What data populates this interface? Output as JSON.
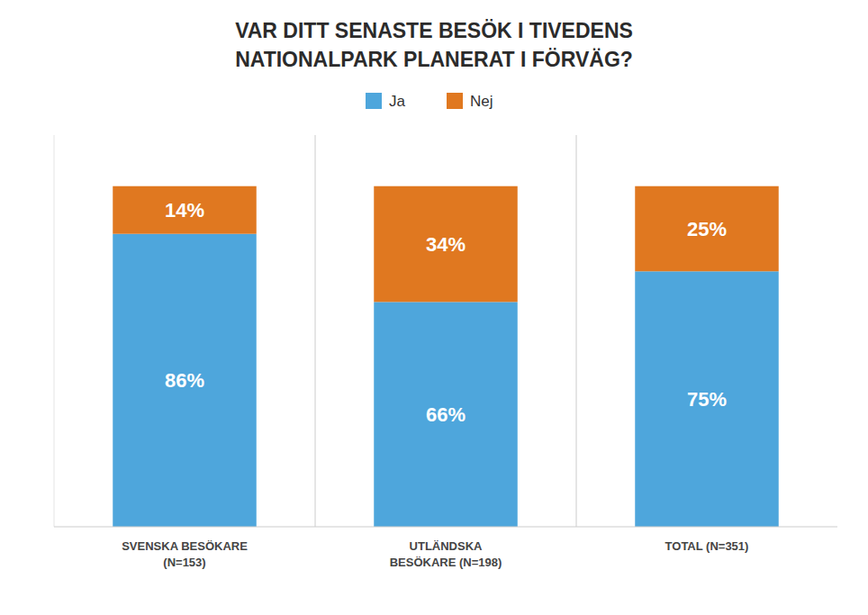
{
  "chart_data": {
    "type": "bar",
    "stacked": true,
    "title": "VAR DITT SENASTE BESÖK I TIVEDENS\nNATIONALPARK PLANERAT I FÖRVÄG?",
    "categories": [
      "SVENSKA BESÖKARE\n(N=153)",
      "UTLÄNDSKA\nBESÖKARE (N=198)",
      "TOTAL (N=351)"
    ],
    "series": [
      {
        "name": "Ja",
        "color": "#4EA6DC",
        "values": [
          86,
          66,
          75
        ],
        "value_labels": [
          "86%",
          "66%",
          "75%"
        ]
      },
      {
        "name": "Nej",
        "color": "#E07820",
        "values": [
          14,
          34,
          25
        ],
        "value_labels": [
          "14%",
          "34%",
          "25%"
        ]
      }
    ],
    "ylim": [
      0,
      115
    ],
    "data_labels": true,
    "tick_labels": "x",
    "legend": "top",
    "grid": false
  }
}
